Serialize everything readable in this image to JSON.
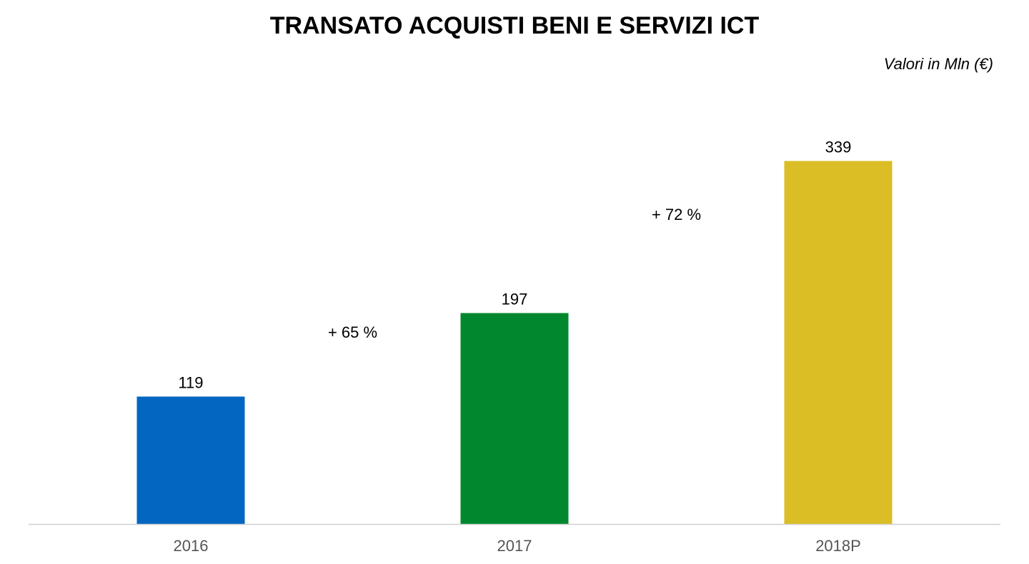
{
  "chart_data": {
    "type": "bar",
    "title": "TRANSATO ACQUISTI BENI E SERVIZI ICT",
    "subtitle": "Valori in Mln (€)",
    "xlabel": "",
    "ylabel": "",
    "categories": [
      "2016",
      "2017",
      "2018P"
    ],
    "values": [
      119,
      197,
      339
    ],
    "value_labels": [
      "119",
      "197",
      "339"
    ],
    "colors": [
      "#0366c1",
      "#01882e",
      "#dbbd26"
    ],
    "ylim": [
      0,
      350
    ],
    "grid": false,
    "legend": "none",
    "annotations": [
      {
        "text": "+ 65 %",
        "between": [
          0,
          1
        ]
      },
      {
        "text": "+ 72 %",
        "between": [
          1,
          2
        ]
      }
    ],
    "axis_color": "#d0d0d0",
    "tick_label_color": "#555555"
  }
}
